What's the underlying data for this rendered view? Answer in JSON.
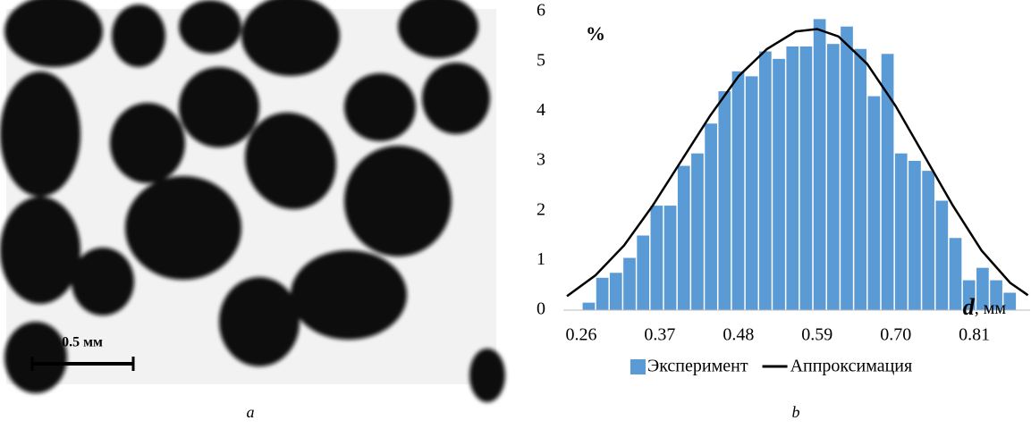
{
  "photo": {
    "scale_bar_label": "0.5 мм",
    "caption": "a"
  },
  "chart_data": {
    "type": "histogram",
    "caption": "b",
    "ylabel": "%",
    "xlabel": [
      "d",
      ", мм"
    ],
    "bins": [
      0.262,
      0.281,
      0.3,
      0.319,
      0.338,
      0.357,
      0.376,
      0.395,
      0.414,
      0.433,
      0.452,
      0.471,
      0.49,
      0.509,
      0.528,
      0.547,
      0.566,
      0.585,
      0.604,
      0.623,
      0.642,
      0.661,
      0.68,
      0.699,
      0.718,
      0.737,
      0.756,
      0.775,
      0.794,
      0.813,
      0.832,
      0.851,
      0.87
    ],
    "series": [
      {
        "name": "Эксперимент",
        "color": "#5b9bd5",
        "values": [
          0.15,
          0.65,
          0.75,
          1.05,
          1.5,
          2.1,
          2.1,
          2.9,
          3.15,
          3.75,
          4.4,
          4.8,
          4.7,
          5.2,
          5.05,
          5.3,
          5.3,
          5.85,
          5.35,
          5.7,
          5.25,
          4.3,
          5.15,
          3.15,
          3.0,
          2.8,
          2.2,
          1.45,
          0.6,
          0.85,
          0.6,
          0.35
        ]
      },
      {
        "name": "Аппроксимация",
        "type": "line",
        "color": "#000000",
        "x": [
          0.24,
          0.28,
          0.32,
          0.36,
          0.4,
          0.44,
          0.48,
          0.52,
          0.56,
          0.59,
          0.62,
          0.66,
          0.7,
          0.74,
          0.78,
          0.82,
          0.86,
          0.885
        ],
        "values": [
          0.28,
          0.7,
          1.3,
          2.1,
          3.0,
          3.9,
          4.7,
          5.25,
          5.6,
          5.65,
          5.5,
          4.95,
          4.1,
          3.1,
          2.1,
          1.2,
          0.55,
          0.3
        ]
      }
    ],
    "xlim": [
      0.235,
      0.888
    ],
    "ylim": [
      0,
      6
    ],
    "xticks": [
      0.26,
      0.37,
      0.48,
      0.59,
      {
        "value": 0.7,
        "label": "0.70"
      },
      0.81
    ],
    "yticks": [
      0,
      1,
      2,
      3,
      4,
      5,
      6
    ]
  }
}
